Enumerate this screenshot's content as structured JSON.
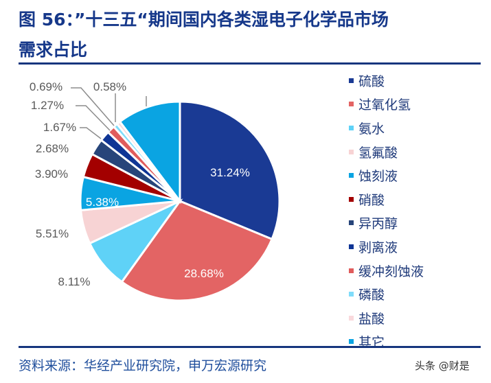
{
  "title_line1": "图 56：”十三五“期间国内各类湿电子化学品市场",
  "title_line2": "需求占比",
  "source": "资料来源：华经产业研究院，申万宏源研究",
  "watermark": "头条 @财是",
  "chart_data": {
    "type": "pie",
    "legend_position": "right",
    "start": "top, clockwise",
    "categories": [
      "硫酸",
      "过氧化氢",
      "氨水",
      "氢氟酸",
      "蚀刻液",
      "硝酸",
      "异丙醇",
      "剥离液",
      "缓冲刻蚀液",
      "磷酸",
      "盐酸",
      "其它"
    ],
    "values": [
      31.24,
      28.68,
      8.11,
      5.51,
      5.38,
      3.9,
      2.68,
      1.67,
      1.27,
      0.69,
      0.58,
      10.29
    ],
    "data_labels": [
      "31.24%",
      "28.68%",
      "8.11%",
      "5.51%",
      "5.38%",
      "3.90%",
      "2.68%",
      "1.67%",
      "1.27%",
      "0.69%",
      "0.58%",
      ""
    ],
    "colors": [
      "#1a3a94",
      "#e36464",
      "#5fd2f7",
      "#f7d3d4",
      "#0aa4e2",
      "#a30000",
      "#27457a",
      "#0f3595",
      "#e05c5c",
      "#7fdcfa",
      "#f9d9dc",
      "#0aa4e2"
    ]
  }
}
